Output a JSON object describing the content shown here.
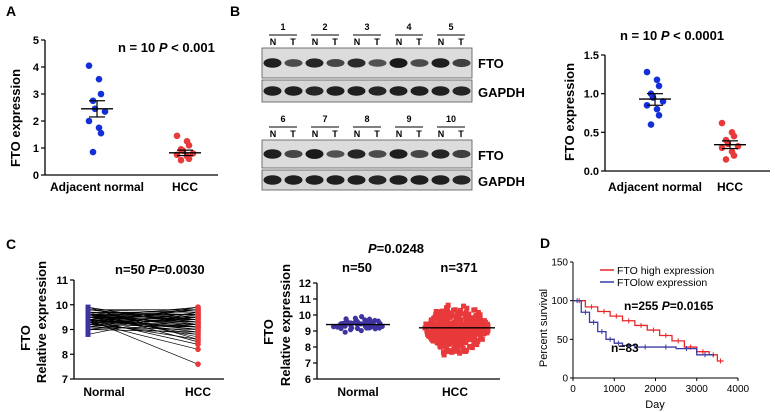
{
  "figure": {
    "panels": {
      "A": {
        "letter": "A",
        "stat_n": "n = 10",
        "stat_p": "P",
        "stat_p_rest": "< 0.001",
        "ylabel": "FTO expression",
        "ticks": [
          "0",
          "1",
          "2",
          "3",
          "4",
          "5"
        ],
        "categories": [
          "Adjacent normal",
          "HCC"
        ]
      },
      "B": {
        "letter": "B",
        "blot_top_lanes": [
          "1",
          "2",
          "3",
          "4",
          "5"
        ],
        "blot_bottom_lanes": [
          "6",
          "7",
          "8",
          "9",
          "10"
        ],
        "n_label": "N",
        "t_label": "T",
        "band_fto": "FTO",
        "band_gapdh": "GAPDH",
        "stat_n": "n = 10",
        "stat_p": "P",
        "stat_p_rest": "< 0.0001",
        "ylabel": "FTO expression",
        "ticks": [
          "0.0",
          "0.5",
          "1.0",
          "1.5"
        ],
        "categories": [
          "Adjacent normal",
          "HCC"
        ]
      },
      "C": {
        "letter": "C",
        "left_stat": "n=50",
        "left_p": "P",
        "left_p_rest": "=0.0030",
        "ylabel_line1": "FTO",
        "ylabel_line2": "Relative expression",
        "left_ticks": [
          "7",
          "8",
          "9",
          "10",
          "11"
        ],
        "left_categories": [
          "Normal",
          "HCC"
        ],
        "right_p": "P",
        "right_p_rest": "=0.0248",
        "right_n1": "n=50",
        "right_n2": "n=371",
        "right_ticks": [
          "6",
          "7",
          "8",
          "9",
          "10",
          "11",
          "12"
        ],
        "right_categories": [
          "Normal",
          "HCC"
        ]
      },
      "D": {
        "letter": "D",
        "legend": [
          "FTO high expression",
          "FTOlow expression"
        ],
        "annot_high": "n=255",
        "annot_p": "P",
        "annot_p_rest": "=0.0165",
        "annot_low": "n=83",
        "ylabel": "Percent survival",
        "xlabel": "Day",
        "yticks": [
          "0",
          "50",
          "100",
          "150"
        ],
        "xticks": [
          "0",
          "1000",
          "2000",
          "3000",
          "4000"
        ]
      }
    },
    "colors": {
      "blue": "#1330d8",
      "red": "#e8393b",
      "purple": "#3f33a0",
      "km_red": "#e8262a",
      "km_blue": "#3b3aa5",
      "black": "#000000"
    }
  },
  "chart_data": [
    {
      "panel": "A",
      "type": "scatter",
      "categories": [
        "Adjacent normal",
        "HCC"
      ],
      "ylabel": "FTO expression",
      "ylim": [
        0,
        5
      ],
      "series": [
        {
          "category": "Adjacent normal",
          "values": [
            4.05,
            3.55,
            3.0,
            2.75,
            2.45,
            2.35,
            2.0,
            1.75,
            1.55,
            0.85
          ],
          "mean": 2.45,
          "sem_low": 2.15,
          "sem_high": 2.75
        },
        {
          "category": "HCC",
          "values": [
            1.45,
            1.25,
            1.1,
            0.95,
            0.9,
            0.8,
            0.75,
            0.7,
            0.6,
            0.55
          ],
          "mean": 0.82,
          "sem_low": 0.72,
          "sem_high": 0.92
        }
      ]
    },
    {
      "panel": "B",
      "type": "scatter",
      "categories": [
        "Adjacent normal",
        "HCC"
      ],
      "ylabel": "FTO expression",
      "ylim": [
        0,
        1.5
      ],
      "series": [
        {
          "category": "Adjacent normal",
          "values": [
            1.28,
            1.18,
            1.1,
            1.0,
            0.95,
            0.9,
            0.85,
            0.8,
            0.72,
            0.6
          ],
          "mean": 0.93,
          "sem_low": 0.85,
          "sem_high": 1.0
        },
        {
          "category": "HCC",
          "values": [
            0.62,
            0.5,
            0.45,
            0.4,
            0.35,
            0.32,
            0.3,
            0.25,
            0.2,
            0.15
          ],
          "mean": 0.34,
          "sem_low": 0.29,
          "sem_high": 0.39
        }
      ]
    },
    {
      "panel": "C-left",
      "type": "line",
      "categories": [
        "Normal",
        "HCC"
      ],
      "ylim": [
        7,
        11
      ],
      "pairs": [
        [
          9.9,
          8.6
        ],
        [
          9.4,
          7.6
        ],
        [
          9.5,
          9.9
        ],
        [
          9.6,
          9.8
        ],
        [
          9.8,
          9.7
        ],
        [
          9.7,
          9.6
        ],
        [
          9.6,
          9.5
        ],
        [
          9.5,
          9.4
        ],
        [
          9.4,
          9.3
        ],
        [
          9.3,
          9.2
        ],
        [
          9.2,
          9.1
        ],
        [
          9.1,
          9.0
        ],
        [
          9.0,
          8.9
        ],
        [
          9.5,
          8.8
        ],
        [
          9.6,
          8.7
        ],
        [
          9.7,
          8.5
        ],
        [
          9.4,
          8.4
        ],
        [
          9.3,
          8.2
        ],
        [
          9.8,
          9.4
        ],
        [
          9.0,
          9.6
        ],
        [
          9.1,
          9.5
        ],
        [
          9.2,
          9.9
        ],
        [
          9.3,
          9.8
        ],
        [
          8.8,
          9.7
        ],
        [
          9.4,
          9.0
        ],
        [
          9.5,
          9.2
        ],
        [
          9.6,
          9.1
        ],
        [
          9.7,
          9.3
        ],
        [
          9.9,
          9.2
        ],
        [
          9.2,
          8.8
        ],
        [
          9.3,
          8.6
        ],
        [
          9.4,
          9.8
        ],
        [
          9.5,
          9.5
        ],
        [
          9.6,
          9.4
        ],
        [
          9.7,
          9.6
        ],
        [
          9.8,
          9.3
        ],
        [
          9.1,
          9.7
        ],
        [
          9.0,
          9.2
        ],
        [
          9.5,
          9.0
        ],
        [
          9.4,
          8.9
        ],
        [
          9.3,
          9.1
        ],
        [
          9.2,
          9.5
        ],
        [
          9.6,
          9.6
        ],
        [
          9.7,
          9.7
        ],
        [
          9.5,
          9.3
        ],
        [
          9.4,
          9.1
        ],
        [
          9.8,
          9.8
        ],
        [
          9.3,
          9.4
        ],
        [
          9.6,
          9.2
        ],
        [
          9.5,
          9.6
        ]
      ]
    },
    {
      "panel": "C-right",
      "type": "scatter",
      "categories": [
        "Normal",
        "HCC"
      ],
      "ylim": [
        6,
        12
      ],
      "summary": [
        {
          "category": "Normal",
          "n": 50,
          "mean": 9.4,
          "min": 8.8,
          "max": 10.1
        },
        {
          "category": "HCC",
          "n": 371,
          "mean": 9.2,
          "min": 7.2,
          "max": 11.0
        }
      ]
    },
    {
      "panel": "D",
      "type": "line",
      "xlabel": "Day",
      "ylabel": "Percent survival",
      "xlim": [
        0,
        4000
      ],
      "ylim": [
        0,
        150
      ],
      "series": [
        {
          "name": "FTO high expression",
          "x": [
            0,
            300,
            600,
            900,
            1200,
            1500,
            1800,
            2100,
            2400,
            2700,
            3000,
            3300,
            3500,
            3650
          ],
          "y": [
            100,
            92,
            86,
            80,
            74,
            68,
            62,
            55,
            48,
            40,
            34,
            30,
            22,
            22
          ]
        },
        {
          "name": "FTOlow expression",
          "x": [
            0,
            200,
            400,
            600,
            800,
            1000,
            1200,
            1500,
            2000,
            2500,
            3000,
            3400
          ],
          "y": [
            100,
            85,
            72,
            60,
            50,
            45,
            42,
            40,
            40,
            38,
            30,
            28
          ]
        }
      ]
    }
  ]
}
